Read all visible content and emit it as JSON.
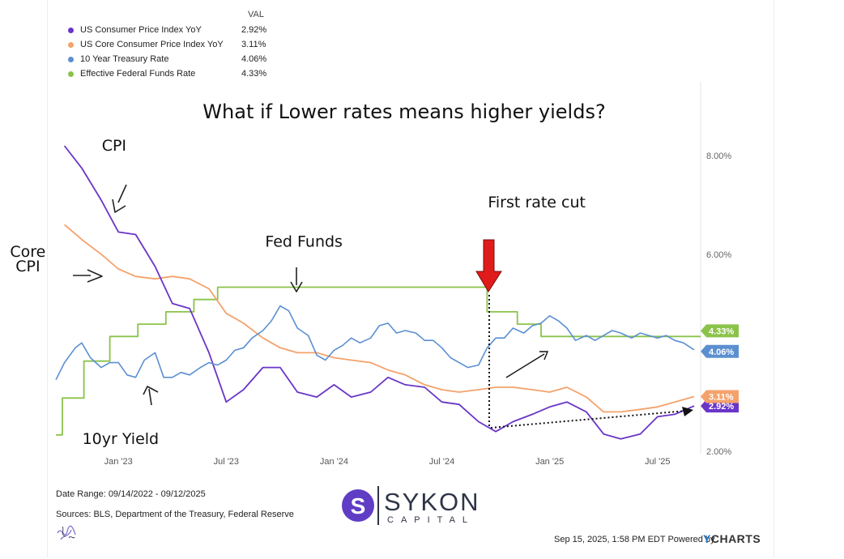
{
  "chart_data": {
    "type": "line",
    "title": "What if Lower rates means higher yields?",
    "legend_header": "VAL",
    "y_ticks": [
      "8.00%",
      "6.00%",
      "2.00%"
    ],
    "y_tick_values": [
      8,
      6,
      2
    ],
    "ylim": [
      2,
      9.5
    ],
    "x_ticks": [
      {
        "label": "Jan '23",
        "t": 2023.0
      },
      {
        "label": "Jul '23",
        "t": 2023.5
      },
      {
        "label": "Jan '24",
        "t": 2024.0
      },
      {
        "label": "Jul '24",
        "t": 2024.5
      },
      {
        "label": "Jan '25",
        "t": 2025.0
      },
      {
        "label": "Jul '25",
        "t": 2025.5
      }
    ],
    "xlim": [
      2022.71,
      2025.7
    ],
    "series": [
      {
        "name": "US Consumer Price Index YoY",
        "value": "2.92%",
        "color": "#6a35c7",
        "points": [
          [
            2022.75,
            8.2
          ],
          [
            2022.83,
            7.75
          ],
          [
            2022.92,
            7.1
          ],
          [
            2023.0,
            6.45
          ],
          [
            2023.08,
            6.4
          ],
          [
            2023.17,
            5.75
          ],
          [
            2023.25,
            5.0
          ],
          [
            2023.33,
            4.9
          ],
          [
            2023.42,
            4.0
          ],
          [
            2023.5,
            3.0
          ],
          [
            2023.58,
            3.25
          ],
          [
            2023.67,
            3.7
          ],
          [
            2023.75,
            3.7
          ],
          [
            2023.83,
            3.2
          ],
          [
            2023.92,
            3.1
          ],
          [
            2024.0,
            3.35
          ],
          [
            2024.08,
            3.1
          ],
          [
            2024.17,
            3.2
          ],
          [
            2024.25,
            3.5
          ],
          [
            2024.33,
            3.35
          ],
          [
            2024.42,
            3.3
          ],
          [
            2024.5,
            3.0
          ],
          [
            2024.58,
            2.95
          ],
          [
            2024.67,
            2.6
          ],
          [
            2024.75,
            2.4
          ],
          [
            2024.83,
            2.6
          ],
          [
            2024.92,
            2.75
          ],
          [
            2025.0,
            2.9
          ],
          [
            2025.08,
            3.0
          ],
          [
            2025.17,
            2.8
          ],
          [
            2025.25,
            2.35
          ],
          [
            2025.33,
            2.25
          ],
          [
            2025.42,
            2.35
          ],
          [
            2025.5,
            2.7
          ],
          [
            2025.58,
            2.75
          ],
          [
            2025.67,
            2.92
          ]
        ]
      },
      {
        "name": "US Core Consumer Price Index YoY",
        "value": "3.11%",
        "color": "#f4a26b",
        "points": [
          [
            2022.75,
            6.6
          ],
          [
            2022.83,
            6.3
          ],
          [
            2022.92,
            6.0
          ],
          [
            2023.0,
            5.7
          ],
          [
            2023.08,
            5.55
          ],
          [
            2023.17,
            5.5
          ],
          [
            2023.25,
            5.55
          ],
          [
            2023.33,
            5.5
          ],
          [
            2023.42,
            5.3
          ],
          [
            2023.5,
            4.8
          ],
          [
            2023.58,
            4.6
          ],
          [
            2023.67,
            4.3
          ],
          [
            2023.75,
            4.1
          ],
          [
            2023.83,
            4.0
          ],
          [
            2023.92,
            4.0
          ],
          [
            2024.0,
            3.9
          ],
          [
            2024.08,
            3.85
          ],
          [
            2024.17,
            3.8
          ],
          [
            2024.25,
            3.65
          ],
          [
            2024.33,
            3.55
          ],
          [
            2024.42,
            3.35
          ],
          [
            2024.5,
            3.25
          ],
          [
            2024.58,
            3.2
          ],
          [
            2024.67,
            3.25
          ],
          [
            2024.75,
            3.3
          ],
          [
            2024.83,
            3.3
          ],
          [
            2024.92,
            3.25
          ],
          [
            2025.0,
            3.2
          ],
          [
            2025.08,
            3.3
          ],
          [
            2025.17,
            3.1
          ],
          [
            2025.25,
            2.8
          ],
          [
            2025.33,
            2.8
          ],
          [
            2025.42,
            2.85
          ],
          [
            2025.5,
            2.9
          ],
          [
            2025.58,
            3.0
          ],
          [
            2025.67,
            3.11
          ]
        ]
      },
      {
        "name": "10 Year Treasury Rate",
        "value": "4.06%",
        "color": "#5b8fd0",
        "points": [
          [
            2022.71,
            3.45
          ],
          [
            2022.75,
            3.8
          ],
          [
            2022.8,
            4.1
          ],
          [
            2022.83,
            4.2
          ],
          [
            2022.87,
            3.9
          ],
          [
            2022.92,
            3.7
          ],
          [
            2022.96,
            3.8
          ],
          [
            2023.0,
            3.8
          ],
          [
            2023.04,
            3.55
          ],
          [
            2023.08,
            3.5
          ],
          [
            2023.12,
            3.85
          ],
          [
            2023.17,
            4.0
          ],
          [
            2023.21,
            3.5
          ],
          [
            2023.25,
            3.5
          ],
          [
            2023.29,
            3.6
          ],
          [
            2023.33,
            3.55
          ],
          [
            2023.38,
            3.7
          ],
          [
            2023.42,
            3.8
          ],
          [
            2023.46,
            3.75
          ],
          [
            2023.5,
            3.85
          ],
          [
            2023.54,
            4.05
          ],
          [
            2023.58,
            4.1
          ],
          [
            2023.62,
            4.3
          ],
          [
            2023.67,
            4.45
          ],
          [
            2023.71,
            4.65
          ],
          [
            2023.75,
            4.95
          ],
          [
            2023.79,
            4.85
          ],
          [
            2023.83,
            4.5
          ],
          [
            2023.88,
            4.35
          ],
          [
            2023.92,
            3.95
          ],
          [
            2023.96,
            3.85
          ],
          [
            2024.0,
            4.05
          ],
          [
            2024.04,
            4.15
          ],
          [
            2024.08,
            4.3
          ],
          [
            2024.12,
            4.2
          ],
          [
            2024.17,
            4.3
          ],
          [
            2024.21,
            4.55
          ],
          [
            2024.25,
            4.6
          ],
          [
            2024.29,
            4.4
          ],
          [
            2024.33,
            4.45
          ],
          [
            2024.38,
            4.4
          ],
          [
            2024.42,
            4.25
          ],
          [
            2024.46,
            4.25
          ],
          [
            2024.5,
            4.1
          ],
          [
            2024.54,
            3.9
          ],
          [
            2024.58,
            3.8
          ],
          [
            2024.62,
            3.7
          ],
          [
            2024.67,
            3.75
          ],
          [
            2024.71,
            4.1
          ],
          [
            2024.75,
            4.3
          ],
          [
            2024.79,
            4.3
          ],
          [
            2024.83,
            4.5
          ],
          [
            2024.88,
            4.4
          ],
          [
            2024.92,
            4.55
          ],
          [
            2024.96,
            4.6
          ],
          [
            2025.0,
            4.75
          ],
          [
            2025.04,
            4.65
          ],
          [
            2025.08,
            4.5
          ],
          [
            2025.12,
            4.25
          ],
          [
            2025.17,
            4.35
          ],
          [
            2025.21,
            4.25
          ],
          [
            2025.25,
            4.35
          ],
          [
            2025.29,
            4.45
          ],
          [
            2025.33,
            4.4
          ],
          [
            2025.38,
            4.3
          ],
          [
            2025.42,
            4.4
          ],
          [
            2025.46,
            4.35
          ],
          [
            2025.5,
            4.3
          ],
          [
            2025.54,
            4.35
          ],
          [
            2025.58,
            4.25
          ],
          [
            2025.62,
            4.2
          ],
          [
            2025.67,
            4.06
          ]
        ]
      },
      {
        "name": "Effective Federal Funds Rate",
        "value": "4.33%",
        "color": "#8bc34a",
        "points": [
          [
            2022.71,
            2.33
          ],
          [
            2022.74,
            2.33
          ],
          [
            2022.74,
            3.08
          ],
          [
            2022.84,
            3.08
          ],
          [
            2022.84,
            3.83
          ],
          [
            2022.96,
            3.83
          ],
          [
            2022.96,
            4.33
          ],
          [
            2023.09,
            4.33
          ],
          [
            2023.09,
            4.58
          ],
          [
            2023.22,
            4.58
          ],
          [
            2023.22,
            4.83
          ],
          [
            2023.35,
            4.83
          ],
          [
            2023.35,
            5.08
          ],
          [
            2023.46,
            5.08
          ],
          [
            2023.46,
            5.33
          ],
          [
            2023.57,
            5.33
          ],
          [
            2024.71,
            5.33
          ],
          [
            2024.71,
            4.83
          ],
          [
            2024.85,
            4.83
          ],
          [
            2024.85,
            4.58
          ],
          [
            2024.96,
            4.58
          ],
          [
            2024.96,
            4.33
          ],
          [
            2025.7,
            4.33
          ]
        ]
      }
    ],
    "annotations": [
      {
        "text": "CPI",
        "t": 2022.98,
        "v": 8.1
      },
      {
        "text": "Core",
        "t": 2022.58,
        "v": 5.95
      },
      {
        "text": "CPI",
        "t": 2022.58,
        "v": 5.65
      },
      {
        "text": "Fed Funds",
        "t": 2023.86,
        "v": 6.15
      },
      {
        "text": "First rate cut",
        "t": 2024.94,
        "v": 6.95
      },
      {
        "text": "10yr Yield",
        "t": 2023.01,
        "v": 2.15
      }
    ]
  },
  "footer": {
    "date_range": "Date Range: 09/14/2022 - 09/12/2025",
    "sources": "Sources: BLS, Department of the Treasury, Federal Reserve",
    "timestamp": "Sep 15, 2025, 1:58 PM EDT Powered by",
    "ycharts_y": "Y",
    "ycharts_rest": "CHARTS"
  },
  "logo": {
    "word": "SYKON",
    "sub": "CAPITAL",
    "mark": "S"
  }
}
